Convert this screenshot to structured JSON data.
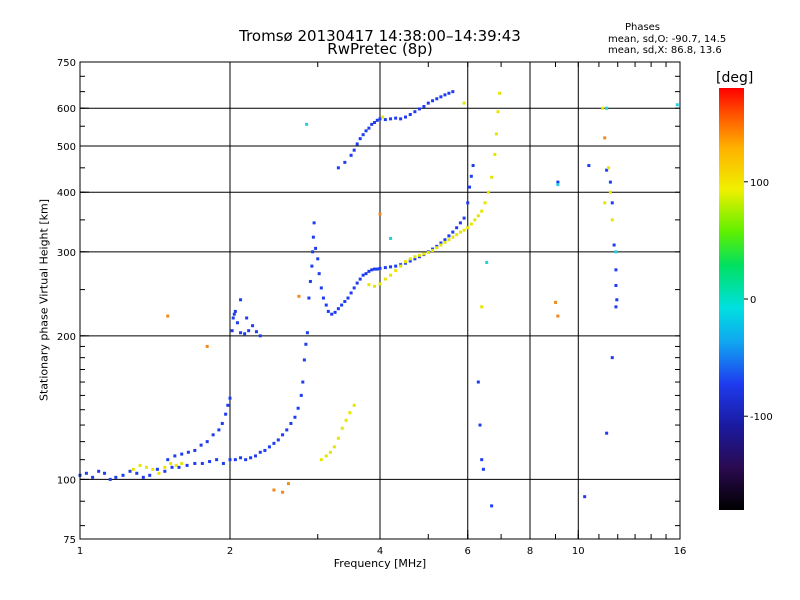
{
  "header": {
    "title_line1": "Tromsø 20130417 14:38:00–14:39:43",
    "title_line2": "RwPretec (8p)"
  },
  "phase_box": {
    "title": "Phases",
    "line_o": "mean, sd,O: -90.7, 14.5",
    "line_x": "mean, sd,X: 86.8, 13.6"
  },
  "colorbar": {
    "unit": "[deg]",
    "ticks": [
      {
        "value": 100,
        "label": "100"
      },
      {
        "value": 0,
        "label": "0"
      },
      {
        "value": -100,
        "label": "-100"
      }
    ],
    "range": [
      -180,
      180
    ]
  },
  "chart_data": {
    "type": "scatter",
    "xlabel": "Frequency [MHz]",
    "ylabel": "Stationary phase Virtual Height [km]",
    "x_scale": "log",
    "y_scale": "log",
    "xlim": [
      1,
      16
    ],
    "ylim": [
      75,
      750
    ],
    "x_ticks": [
      {
        "value": 1,
        "label": "1"
      },
      {
        "value": 2,
        "label": "2"
      },
      {
        "value": 4,
        "label": "4"
      },
      {
        "value": 6,
        "label": "6"
      },
      {
        "value": 8,
        "label": "8"
      },
      {
        "value": 10,
        "label": "10"
      },
      {
        "value": 16,
        "label": "16"
      }
    ],
    "x_gridlines": [
      2,
      4,
      6,
      8,
      10
    ],
    "y_ticks": [
      {
        "value": 75,
        "label": "75"
      },
      {
        "value": 100,
        "label": "100"
      },
      {
        "value": 200,
        "label": "200"
      },
      {
        "value": 300,
        "label": "300"
      },
      {
        "value": 400,
        "label": "400"
      },
      {
        "value": 500,
        "label": "500"
      },
      {
        "value": 600,
        "label": "600"
      },
      {
        "value": 750,
        "label": "750"
      }
    ],
    "y_gridlines": [
      100,
      200,
      300,
      400,
      500,
      600
    ],
    "grid": true,
    "series": [
      {
        "name": "O",
        "color": "#1e3cf0",
        "points": [
          [
            1.0,
            102
          ],
          [
            1.03,
            103
          ],
          [
            1.06,
            101
          ],
          [
            1.09,
            104
          ],
          [
            1.12,
            103
          ],
          [
            1.15,
            100
          ],
          [
            1.18,
            101
          ],
          [
            1.22,
            102
          ],
          [
            1.26,
            104
          ],
          [
            1.3,
            103
          ],
          [
            1.34,
            101
          ],
          [
            1.38,
            102
          ],
          [
            1.43,
            105
          ],
          [
            1.48,
            104
          ],
          [
            1.53,
            106
          ],
          [
            1.58,
            106
          ],
          [
            1.64,
            107
          ],
          [
            1.7,
            108
          ],
          [
            1.76,
            108
          ],
          [
            1.82,
            109
          ],
          [
            1.88,
            110
          ],
          [
            1.94,
            108
          ],
          [
            2.0,
            110
          ],
          [
            2.05,
            110
          ],
          [
            2.1,
            111
          ],
          [
            2.15,
            110
          ],
          [
            2.2,
            111
          ],
          [
            2.25,
            112
          ],
          [
            2.3,
            114
          ],
          [
            2.35,
            115
          ],
          [
            2.4,
            117
          ],
          [
            2.45,
            119
          ],
          [
            2.5,
            121
          ],
          [
            2.55,
            124
          ],
          [
            2.6,
            127
          ],
          [
            2.65,
            131
          ],
          [
            2.7,
            135
          ],
          [
            2.74,
            141
          ],
          [
            2.78,
            150
          ],
          [
            2.8,
            160
          ],
          [
            2.82,
            178
          ],
          [
            2.84,
            192
          ],
          [
            2.86,
            203
          ],
          [
            1.5,
            110
          ],
          [
            1.55,
            112
          ],
          [
            1.6,
            113
          ],
          [
            1.65,
            114
          ],
          [
            1.7,
            115
          ],
          [
            1.75,
            118
          ],
          [
            1.8,
            120
          ],
          [
            1.85,
            124
          ],
          [
            1.9,
            127
          ],
          [
            1.93,
            131
          ],
          [
            1.96,
            137
          ],
          [
            1.98,
            143
          ],
          [
            2.0,
            148
          ],
          [
            2.02,
            205
          ],
          [
            2.03,
            218
          ],
          [
            2.05,
            225
          ],
          [
            2.07,
            213
          ],
          [
            2.1,
            203
          ],
          [
            2.14,
            202
          ],
          [
            2.18,
            205
          ],
          [
            2.22,
            210
          ],
          [
            2.26,
            204
          ],
          [
            2.3,
            200
          ],
          [
            2.1,
            238
          ],
          [
            2.04,
            222
          ],
          [
            2.16,
            218
          ],
          [
            2.88,
            240
          ],
          [
            2.9,
            260
          ],
          [
            2.92,
            280
          ],
          [
            2.93,
            300
          ],
          [
            2.94,
            322
          ],
          [
            2.95,
            345
          ],
          [
            2.97,
            305
          ],
          [
            3.0,
            290
          ],
          [
            3.02,
            270
          ],
          [
            3.05,
            252
          ],
          [
            3.08,
            240
          ],
          [
            3.12,
            232
          ],
          [
            3.15,
            225
          ],
          [
            3.2,
            222
          ],
          [
            3.25,
            224
          ],
          [
            3.3,
            228
          ],
          [
            3.35,
            232
          ],
          [
            3.4,
            236
          ],
          [
            3.45,
            240
          ],
          [
            3.5,
            246
          ],
          [
            3.55,
            252
          ],
          [
            3.6,
            258
          ],
          [
            3.65,
            263
          ],
          [
            3.7,
            268
          ],
          [
            3.75,
            270
          ],
          [
            3.8,
            273
          ],
          [
            3.85,
            275
          ],
          [
            3.9,
            276
          ],
          [
            3.95,
            276
          ],
          [
            4.0,
            277
          ],
          [
            4.1,
            278
          ],
          [
            4.2,
            279
          ],
          [
            4.3,
            280
          ],
          [
            4.4,
            282
          ],
          [
            4.5,
            284
          ],
          [
            4.6,
            287
          ],
          [
            4.7,
            290
          ],
          [
            4.8,
            293
          ],
          [
            4.9,
            296
          ],
          [
            5.0,
            300
          ],
          [
            5.1,
            304
          ],
          [
            5.2,
            308
          ],
          [
            5.3,
            313
          ],
          [
            5.4,
            318
          ],
          [
            5.5,
            324
          ],
          [
            5.6,
            330
          ],
          [
            5.7,
            337
          ],
          [
            5.8,
            345
          ],
          [
            5.9,
            353
          ],
          [
            6.0,
            380
          ],
          [
            6.05,
            410
          ],
          [
            6.1,
            432
          ],
          [
            6.15,
            455
          ],
          [
            3.3,
            450
          ],
          [
            3.4,
            462
          ],
          [
            3.5,
            478
          ],
          [
            3.55,
            490
          ],
          [
            3.6,
            505
          ],
          [
            3.65,
            518
          ],
          [
            3.7,
            528
          ],
          [
            3.75,
            538
          ],
          [
            3.8,
            545
          ],
          [
            3.85,
            555
          ],
          [
            3.9,
            560
          ],
          [
            3.95,
            566
          ],
          [
            4.0,
            570
          ],
          [
            4.1,
            568
          ],
          [
            4.2,
            570
          ],
          [
            4.3,
            572
          ],
          [
            4.4,
            570
          ],
          [
            4.5,
            575
          ],
          [
            4.6,
            582
          ],
          [
            4.7,
            590
          ],
          [
            4.8,
            598
          ],
          [
            4.9,
            605
          ],
          [
            5.0,
            615
          ],
          [
            5.1,
            622
          ],
          [
            5.2,
            628
          ],
          [
            5.3,
            634
          ],
          [
            5.4,
            640
          ],
          [
            5.5,
            645
          ],
          [
            5.6,
            650
          ],
          [
            6.3,
            160
          ],
          [
            6.35,
            130
          ],
          [
            6.4,
            110
          ],
          [
            6.45,
            105
          ],
          [
            6.7,
            88
          ],
          [
            11.4,
            445
          ],
          [
            11.6,
            420
          ],
          [
            11.7,
            380
          ],
          [
            11.8,
            310
          ],
          [
            11.9,
            275
          ],
          [
            11.9,
            255
          ],
          [
            11.95,
            238
          ],
          [
            11.9,
            230
          ],
          [
            11.7,
            180
          ],
          [
            11.4,
            125
          ],
          [
            9.1,
            420
          ],
          [
            10.5,
            455
          ],
          [
            10.3,
            92
          ]
        ]
      },
      {
        "name": "X",
        "color": "#e6e600",
        "points": [
          [
            1.28,
            105
          ],
          [
            1.32,
            107
          ],
          [
            1.36,
            106
          ],
          [
            1.4,
            105
          ],
          [
            1.44,
            103
          ],
          [
            1.48,
            106
          ],
          [
            1.52,
            108
          ],
          [
            1.56,
            107
          ],
          [
            1.6,
            108
          ],
          [
            3.05,
            110
          ],
          [
            3.12,
            112
          ],
          [
            3.18,
            114
          ],
          [
            3.24,
            117
          ],
          [
            3.3,
            122
          ],
          [
            3.36,
            128
          ],
          [
            3.42,
            133
          ],
          [
            3.48,
            138
          ],
          [
            3.55,
            143
          ],
          [
            3.8,
            256
          ],
          [
            3.9,
            254
          ],
          [
            4.0,
            257
          ],
          [
            4.1,
            263
          ],
          [
            4.2,
            268
          ],
          [
            4.3,
            274
          ],
          [
            4.4,
            280
          ],
          [
            4.5,
            286
          ],
          [
            4.6,
            290
          ],
          [
            4.7,
            293
          ],
          [
            4.8,
            295
          ],
          [
            4.9,
            297
          ],
          [
            5.0,
            299
          ],
          [
            5.1,
            302
          ],
          [
            5.2,
            306
          ],
          [
            5.3,
            310
          ],
          [
            5.4,
            314
          ],
          [
            5.5,
            318
          ],
          [
            5.6,
            322
          ],
          [
            5.7,
            326
          ],
          [
            5.8,
            330
          ],
          [
            5.9,
            333
          ],
          [
            6.0,
            337
          ],
          [
            6.1,
            343
          ],
          [
            6.2,
            350
          ],
          [
            6.3,
            357
          ],
          [
            6.4,
            365
          ],
          [
            6.5,
            380
          ],
          [
            6.6,
            400
          ],
          [
            6.7,
            430
          ],
          [
            6.8,
            480
          ],
          [
            6.85,
            530
          ],
          [
            6.9,
            590
          ],
          [
            6.95,
            645
          ],
          [
            4.05,
            575
          ],
          [
            5.9,
            615
          ],
          [
            6.4,
            230
          ],
          [
            11.3,
            380
          ],
          [
            11.5,
            450
          ],
          [
            11.6,
            400
          ],
          [
            11.7,
            350
          ],
          [
            11.2,
            600
          ]
        ]
      },
      {
        "name": "orange",
        "color": "#f08a1e",
        "points": [
          [
            1.5,
            220
          ],
          [
            1.8,
            190
          ],
          [
            2.45,
            95
          ],
          [
            2.55,
            94
          ],
          [
            2.62,
            98
          ],
          [
            2.75,
            242
          ],
          [
            11.3,
            520
          ],
          [
            9.0,
            235
          ],
          [
            9.1,
            220
          ],
          [
            4.0,
            360
          ]
        ]
      },
      {
        "name": "cyan",
        "color": "#20d0e0",
        "points": [
          [
            2.85,
            555
          ],
          [
            4.2,
            320
          ],
          [
            6.55,
            285
          ],
          [
            9.1,
            415
          ],
          [
            11.4,
            600
          ],
          [
            15.8,
            610
          ],
          [
            11.9,
            300
          ]
        ]
      }
    ]
  }
}
